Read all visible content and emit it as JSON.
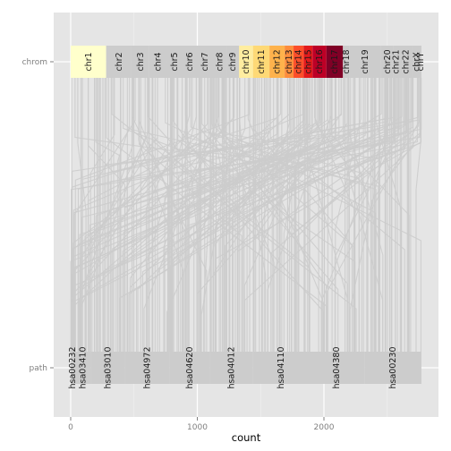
{
  "chart_data": {
    "type": "alluvial",
    "title": "",
    "xlabel": "count",
    "ylabel": "",
    "xlim": [
      -100,
      2900
    ],
    "x_ticks": [
      0,
      1000,
      2000
    ],
    "axes": [
      "chrom",
      "path"
    ],
    "grid": true,
    "legend": "none",
    "chrom_strata": [
      {
        "name": "chr1",
        "start": 0,
        "end": 280,
        "color": "#ffffcc"
      },
      {
        "name": "chr2",
        "start": 280,
        "end": 480,
        "color": "#cccccc"
      },
      {
        "name": "chr3",
        "start": 480,
        "end": 620,
        "color": "#cccccc"
      },
      {
        "name": "chr4",
        "start": 620,
        "end": 760,
        "color": "#cccccc"
      },
      {
        "name": "chr5",
        "start": 760,
        "end": 880,
        "color": "#cccccc"
      },
      {
        "name": "chr6",
        "start": 880,
        "end": 1000,
        "color": "#cccccc"
      },
      {
        "name": "chr7",
        "start": 1000,
        "end": 1120,
        "color": "#cccccc"
      },
      {
        "name": "chr8",
        "start": 1120,
        "end": 1230,
        "color": "#cccccc"
      },
      {
        "name": "chr9",
        "start": 1230,
        "end": 1330,
        "color": "#cccccc"
      },
      {
        "name": "chr10",
        "start": 1330,
        "end": 1440,
        "color": "#ffeda0"
      },
      {
        "name": "chr11",
        "start": 1440,
        "end": 1570,
        "color": "#fed976"
      },
      {
        "name": "chr12",
        "start": 1570,
        "end": 1690,
        "color": "#feb24c"
      },
      {
        "name": "chr13",
        "start": 1690,
        "end": 1760,
        "color": "#fd8d3c"
      },
      {
        "name": "chr14",
        "start": 1760,
        "end": 1840,
        "color": "#fc4e2a"
      },
      {
        "name": "chr15",
        "start": 1840,
        "end": 1910,
        "color": "#e31a1c"
      },
      {
        "name": "chr16",
        "start": 1910,
        "end": 2020,
        "color": "#bd0026"
      },
      {
        "name": "chr17",
        "start": 2020,
        "end": 2150,
        "color": "#800026"
      },
      {
        "name": "chr18",
        "start": 2150,
        "end": 2200,
        "color": "#cccccc"
      },
      {
        "name": "chr19",
        "start": 2200,
        "end": 2450,
        "color": "#cccccc"
      },
      {
        "name": "chr20",
        "start": 2450,
        "end": 2550,
        "color": "#cccccc"
      },
      {
        "name": "chr21",
        "start": 2550,
        "end": 2590,
        "color": "#cccccc"
      },
      {
        "name": "chr22",
        "start": 2590,
        "end": 2700,
        "color": "#cccccc"
      },
      {
        "name": "chrX",
        "start": 2700,
        "end": 2760,
        "color": "#cccccc"
      },
      {
        "name": "chrY",
        "start": 2760,
        "end": 2770,
        "color": "#cccccc"
      }
    ],
    "path_strata": [
      {
        "name": "hsa00232",
        "start": 0,
        "end": 30
      },
      {
        "name": "hsa03410",
        "start": 30,
        "end": 160
      },
      {
        "name": "hsa03010",
        "start": 160,
        "end": 430
      },
      {
        "name": "hsa04972",
        "start": 430,
        "end": 780
      },
      {
        "name": "hsa04620",
        "start": 780,
        "end": 1100
      },
      {
        "name": "hsa04012",
        "start": 1100,
        "end": 1440
      },
      {
        "name": "hsa04110",
        "start": 1440,
        "end": 1880
      },
      {
        "name": "hsa04380",
        "start": 1880,
        "end": 2320
      },
      {
        "name": "hsa00230",
        "start": 2320,
        "end": 2770
      }
    ]
  }
}
